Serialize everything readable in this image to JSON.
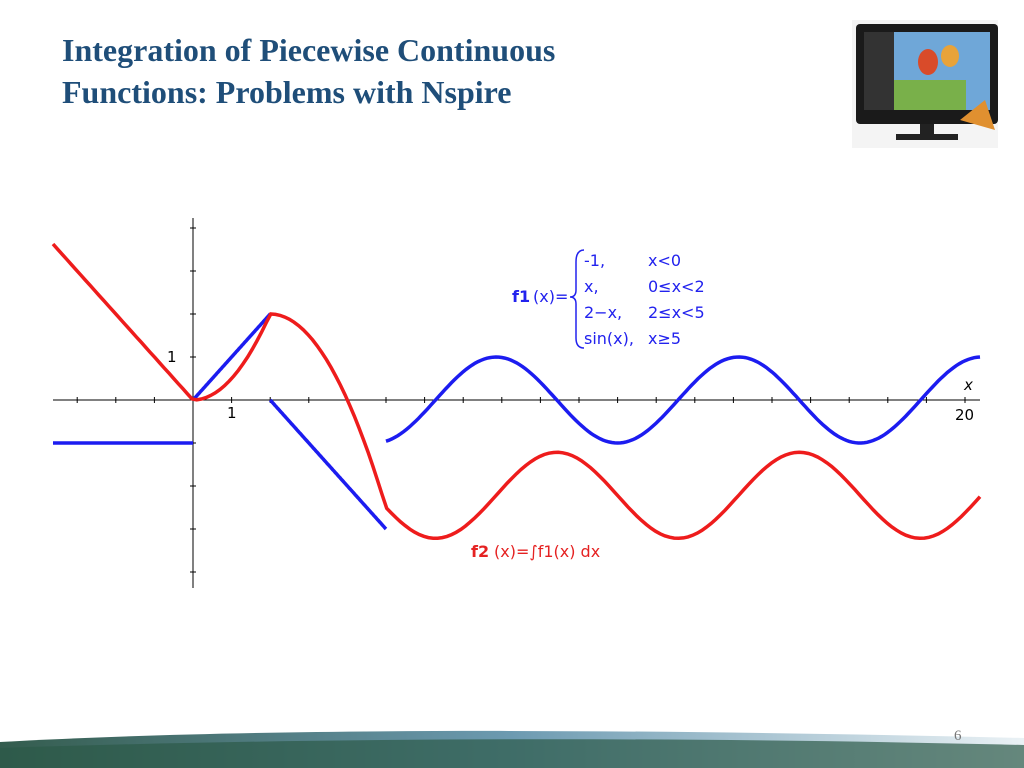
{
  "title": [
    "Integration of Piecewise Continuous",
    "Functions: Problems with Nspire"
  ],
  "graph": {
    "y_label_1": "1",
    "x_label_1": "1",
    "x_label_20": "20",
    "x_axis_name": "x",
    "f1": {
      "name": "f1",
      "lhs": "(x)=",
      "cases": [
        [
          "-1,",
          "x<0"
        ],
        [
          "x,",
          "0≤x<2"
        ],
        [
          "2−x,",
          "2≤x<5"
        ],
        [
          "sin(x),",
          "x≥5"
        ]
      ]
    },
    "f2": {
      "name": "f2",
      "rhs": "(x)=∫f1(x) dx"
    }
  },
  "page_number": "6"
}
